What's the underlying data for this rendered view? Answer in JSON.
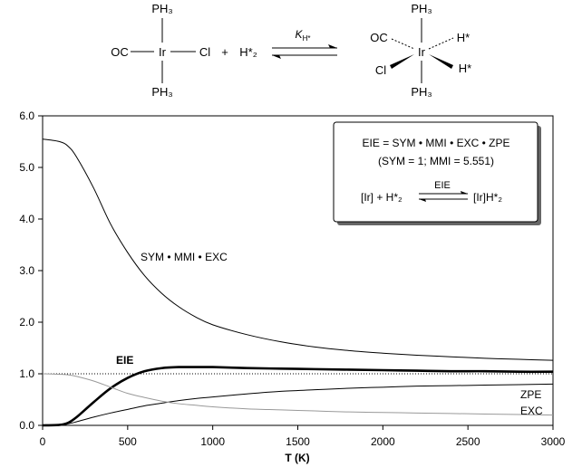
{
  "scheme": {
    "left": {
      "metal": "Ir",
      "top": "PH₃",
      "bottom": "PH₃",
      "left": "OC",
      "right": "Cl"
    },
    "plus": "+",
    "h2": "H*₂",
    "arrow_label": "K",
    "arrow_label_sub": "H*",
    "right": {
      "metal": "Ir",
      "top": "PH₃",
      "bottom": "PH₃",
      "upper_left": "OC",
      "lower_left": "Cl",
      "upper_right": "H*",
      "lower_right": "H*"
    }
  },
  "legend_box": {
    "line1": "EIE = SYM • MMI • EXC • ZPE",
    "line2": "(SYM = 1; MMI = 5.551)",
    "eq_label": "EIE",
    "eq_left": "[Ir] + H*₂",
    "eq_right": "[Ir]H*₂"
  },
  "chart_data": {
    "type": "line",
    "xlabel": "T (K)",
    "ylabel": "",
    "xlim": [
      0,
      3000
    ],
    "ylim": [
      0,
      6
    ],
    "xticks": [
      "0",
      "500",
      "1000",
      "1500",
      "2000",
      "2500",
      "3000"
    ],
    "yticks": [
      "0.0",
      "1.0",
      "2.0",
      "3.0",
      "4.0",
      "5.0",
      "6.0"
    ],
    "grid": false,
    "reference_line": {
      "y": 1.0,
      "style": "dotted"
    },
    "x": [
      0,
      100,
      150,
      200,
      300,
      400,
      500,
      600,
      700,
      800,
      900,
      1000,
      1200,
      1400,
      1600,
      1800,
      2000,
      2200,
      2400,
      2600,
      2800,
      3000
    ],
    "series": [
      {
        "name": "SYM • MMI • EXC",
        "color": "#000000",
        "values": [
          5.55,
          5.5,
          5.41,
          5.2,
          4.6,
          3.9,
          3.35,
          2.9,
          2.56,
          2.3,
          2.1,
          1.95,
          1.76,
          1.62,
          1.52,
          1.45,
          1.4,
          1.36,
          1.33,
          1.3,
          1.28,
          1.26
        ]
      },
      {
        "name": "EIE",
        "color": "#000000",
        "values": [
          0.0,
          0.01,
          0.05,
          0.16,
          0.45,
          0.72,
          0.92,
          1.05,
          1.11,
          1.13,
          1.13,
          1.13,
          1.11,
          1.1,
          1.09,
          1.08,
          1.07,
          1.06,
          1.05,
          1.05,
          1.04,
          1.04
        ]
      },
      {
        "name": "ZPE",
        "color": "#000000",
        "values": [
          0.0,
          0.01,
          0.03,
          0.07,
          0.16,
          0.24,
          0.31,
          0.38,
          0.43,
          0.48,
          0.52,
          0.55,
          0.61,
          0.66,
          0.69,
          0.72,
          0.74,
          0.76,
          0.77,
          0.78,
          0.79,
          0.8
        ]
      },
      {
        "name": "EXC",
        "color": "#999999",
        "values": [
          1.0,
          0.99,
          0.98,
          0.95,
          0.86,
          0.74,
          0.62,
          0.54,
          0.47,
          0.42,
          0.39,
          0.36,
          0.32,
          0.3,
          0.28,
          0.26,
          0.25,
          0.24,
          0.23,
          0.22,
          0.21,
          0.2
        ]
      }
    ],
    "annotations": [
      "SYM • MMI • EXC",
      "EIE",
      "ZPE",
      "EXC"
    ]
  }
}
